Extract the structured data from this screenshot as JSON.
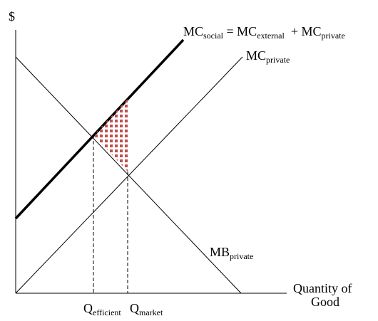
{
  "axes": {
    "y_label": "$",
    "x_label_line1": "Quantity of",
    "x_label_line2": "Good"
  },
  "curves": {
    "mc_social": {
      "main1": "MC",
      "sub1": "social",
      "eq": " = MC",
      "sub2": "external",
      "plus": "  + MC",
      "sub3": "private"
    },
    "mc_private": {
      "main": "MC",
      "sub": "private"
    },
    "mb_private": {
      "main": "MB",
      "sub": "private"
    }
  },
  "quantities": {
    "efficient": {
      "main": "Q",
      "sub": "efficient"
    },
    "market": {
      "main": "Q",
      "sub": "market"
    }
  },
  "colors": {
    "axis": "#000000",
    "social_curve": "#000000",
    "deadweight_loss": "#c0504d"
  }
}
